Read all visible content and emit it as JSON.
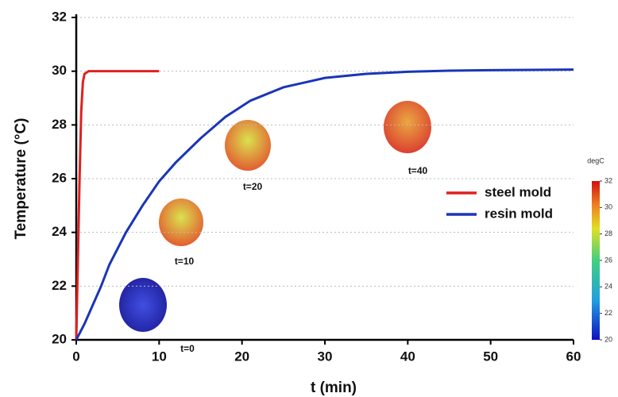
{
  "chart_data": {
    "type": "line",
    "x_label": "t (min)",
    "y_label": "Temperature (°C)",
    "xlim": [
      0,
      60
    ],
    "xticks": [
      0,
      10,
      20,
      30,
      40,
      50,
      60
    ],
    "ylim": [
      20,
      32
    ],
    "yticks": [
      20,
      22,
      24,
      26,
      28,
      30,
      32
    ],
    "grid": true,
    "legend": "right",
    "series": [
      {
        "name": "steel mold",
        "color": "#e02020",
        "x": [
          0,
          0.2,
          0.4,
          0.6,
          0.8,
          1,
          1.5,
          2,
          5,
          10
        ],
        "values": [
          20,
          23,
          26,
          28.5,
          29.6,
          29.9,
          30,
          30,
          30,
          30
        ]
      },
      {
        "name": "resin mold",
        "color": "#1a35b8",
        "x": [
          0,
          1,
          2,
          3,
          4,
          5,
          6,
          8,
          10,
          12,
          15,
          18,
          21,
          25,
          30,
          35,
          40,
          45,
          50,
          55,
          60
        ],
        "values": [
          20,
          20.6,
          21.3,
          22.0,
          22.8,
          23.4,
          24.0,
          25.0,
          25.9,
          26.6,
          27.5,
          28.3,
          28.9,
          29.4,
          29.75,
          29.9,
          29.98,
          30.02,
          30.04,
          30.05,
          30.06
        ]
      }
    ],
    "annotations": [
      "t=0",
      "t=10",
      "t=20",
      "t=40"
    ],
    "colorbar": {
      "label": "degC",
      "ticks": [
        20,
        22,
        24,
        26,
        28,
        30,
        32
      ]
    }
  }
}
